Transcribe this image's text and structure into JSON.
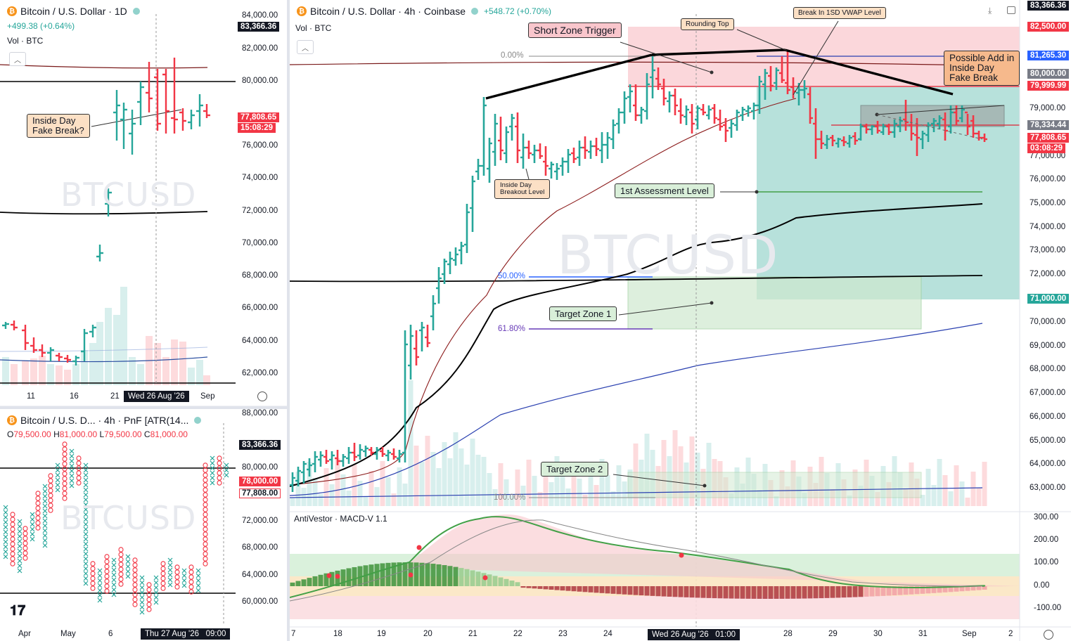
{
  "left_top": {
    "title": "Bitcoin / U.S. Dollar · 1D",
    "change": "+499.38 (+0.64%)",
    "vol_label": "Vol · BTC",
    "watermark": "BTCUSD",
    "prices": [
      "84,000.00",
      "82,000.00",
      "80,000.00",
      "76,000.00",
      "74,000.00",
      "72,000.00",
      "70,000.00",
      "68,000.00",
      "66,000.00",
      "64,000.00",
      "62,000.00"
    ],
    "price_tag_top": "83,366.36",
    "price_tag_close": "77,808.65",
    "countdown": "15:08:29",
    "annotation": "Inside Day\nFake Break?",
    "x_labels": [
      "11",
      "16",
      "21",
      "Sep"
    ],
    "x_badge": "Wed 26 Aug '26"
  },
  "left_bottom": {
    "title": "Bitcoin / U.S. D... · 4h · PnF [ATR(14...",
    "ohlc": {
      "o": "79,500.00",
      "h": "81,000.00",
      "l": "79,500.00",
      "c": "81,000.00"
    },
    "watermark": "BTCUSD",
    "prices": [
      "88,000.00",
      "80,000.00",
      "72,000.00",
      "68,000.00",
      "64,000.00",
      "60,000.00"
    ],
    "tag_top": "83,366.36",
    "tag_red": "78,000.00",
    "tag_close": "77,808.00",
    "x_labels": [
      "Apr",
      "May",
      "6"
    ],
    "x_badge": "Thu 27 Aug '26",
    "x_time": "09:00"
  },
  "main": {
    "title": "Bitcoin / U.S. Dollar · 4h · Coinbase",
    "change": "+548.72 (+0.70%)",
    "vol_label": "Vol · BTC",
    "watermark": "BTCUSD",
    "prices": [
      "82,500.00",
      "79,000.00",
      "77,000.00",
      "76,000.00",
      "75,000.00",
      "74,000.00",
      "73,000.00",
      "72,000.00",
      "70,000.00",
      "69,000.00",
      "68,000.00",
      "67,000.00",
      "66,000.00",
      "65,000.00",
      "64,000.00",
      "63,000.00"
    ],
    "tags": {
      "top": "83,366.36",
      "t82500": "82,500.00",
      "t81265": "81,265.30",
      "t80000": "80,000.00",
      "t79999": "79,999.99",
      "t78334": "78,334.44",
      "t77808": "77,808.65",
      "countdown": "03:08:29",
      "t71000": "71,000.00"
    },
    "fib": {
      "f0": "0.00%",
      "f50": "50.00%",
      "f618": "61.80%",
      "f100": "100.00%"
    },
    "annotations": {
      "short_zone": "Short Zone Trigger",
      "rounding_top": "Rounding Top",
      "vwap_break": "Break In 1SD VWAP Level",
      "possible_add": "Possible Add in\nInside Day\nFake Break",
      "inside_day": "Inside Day\nBreakout Level",
      "assessment": "1st Assessment Level",
      "target1": "Target Zone 1",
      "target2": "Target Zone 2"
    },
    "macd": {
      "label": "AntiVestor · MACD-V 1.1",
      "levels": [
        "300.00",
        "200.00",
        "100.00",
        "0.00",
        "-100.00"
      ]
    },
    "x_labels": [
      "7",
      "18",
      "19",
      "20",
      "21",
      "22",
      "23",
      "24",
      "28",
      "29",
      "30",
      "31",
      "Sep",
      "2"
    ],
    "x_badge": "Wed 26 Aug '26",
    "x_time": "01:00"
  },
  "colors": {
    "up": "#26a69a",
    "down": "#f23645",
    "tag_dark": "#131722",
    "tag_blue": "#2962ff",
    "tag_gray": "#787b86"
  }
}
